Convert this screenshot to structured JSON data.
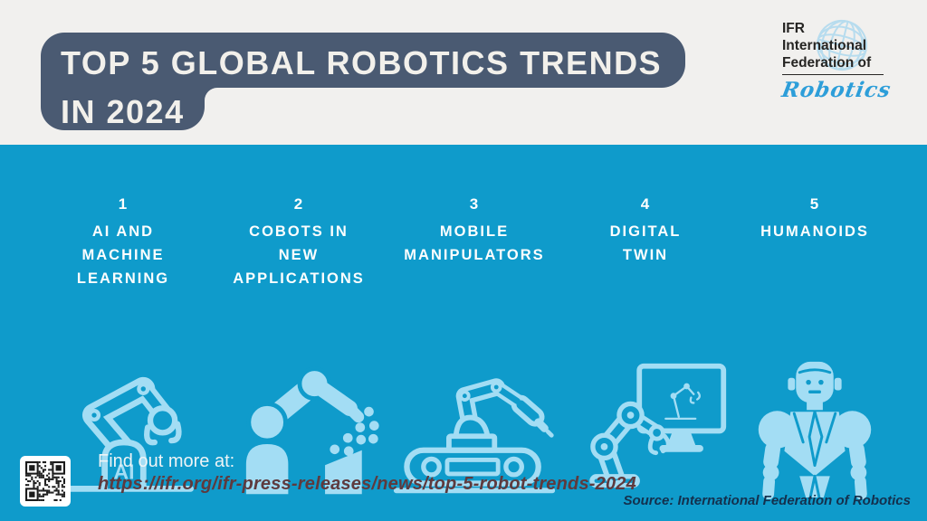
{
  "colors": {
    "background_blue": "#0f9bcb",
    "panel_slate": "#4a5a72",
    "icon_light_blue": "#a3ddf4",
    "top_band": "#f1f0ee",
    "title_text": "#f2f0eb",
    "url_maroon": "#5e3a3e",
    "source_navy": "#14304d",
    "logo_script_blue": "#2d9ed9"
  },
  "header": {
    "title_line1": "TOP 5 GLOBAL ROBOTICS TRENDS",
    "title_line2": "IN 2024",
    "logo": {
      "abbr": "IFR",
      "line2": "International",
      "line3": "Federation of",
      "script": "Robotics",
      "globe_icon": "globe-icon"
    }
  },
  "trends": [
    {
      "number": "1",
      "lines": [
        "AI AND",
        "MACHINE",
        "LEARNING"
      ],
      "icon": "ai-robot-arm-icon"
    },
    {
      "number": "2",
      "lines": [
        "COBOTS IN",
        "NEW",
        "APPLICATIONS"
      ],
      "icon": "cobot-arm-icon"
    },
    {
      "number": "3",
      "lines": [
        "MOBILE",
        "MANIPULATORS"
      ],
      "icon": "mobile-manipulator-icon"
    },
    {
      "number": "4",
      "lines": [
        "DIGITAL",
        "TWIN"
      ],
      "icon": "digital-twin-icon"
    },
    {
      "number": "5",
      "lines": [
        "HUMANOIDS"
      ],
      "icon": "humanoid-robot-icon"
    }
  ],
  "footer": {
    "find_out_label": "Find out more at:",
    "url": "https://ifr.org/ifr-press-releases/news/top-5-robot-trends-2024",
    "source": "Source: International Federation of Robotics",
    "qr_icon": "qr-code-icon"
  }
}
